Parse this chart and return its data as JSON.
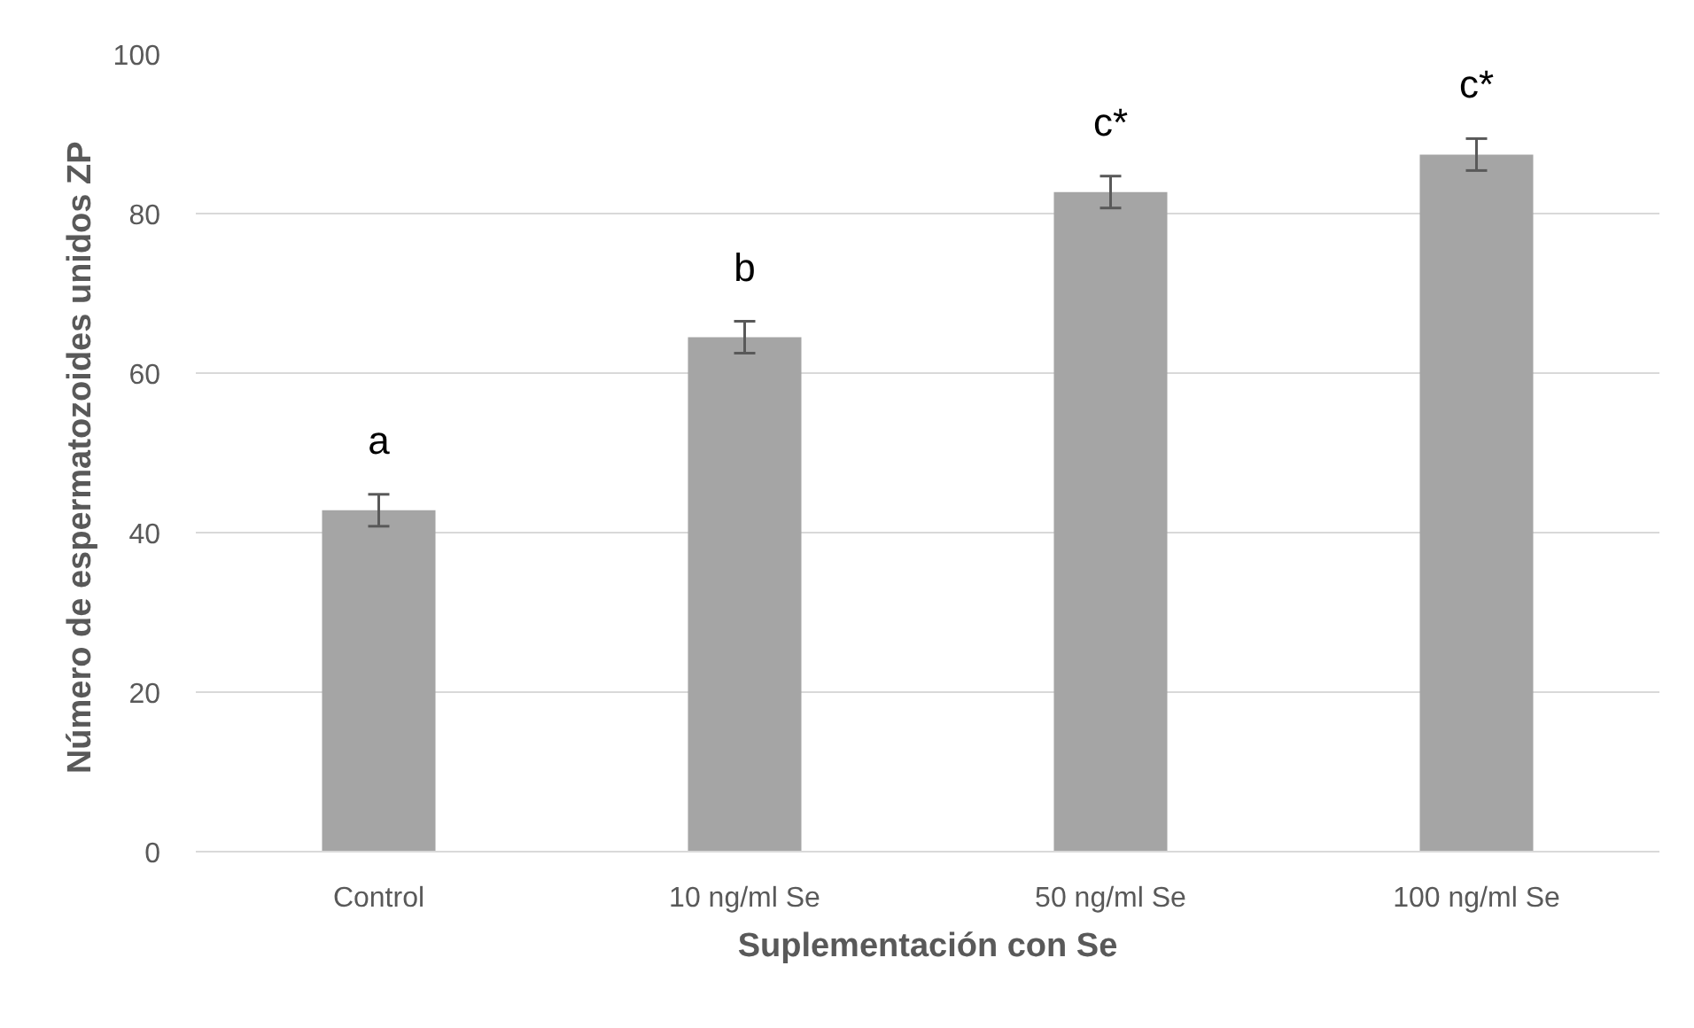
{
  "chart_data": {
    "type": "bar",
    "xlabel": "Suplementación con Se",
    "ylabel": "Número de espermatozoides unidos  ZP",
    "categories": [
      "Control",
      "10 ng/ml Se",
      "50 ng/ml Se",
      "100 ng/ml Se"
    ],
    "values": [
      42.8,
      64.5,
      82.7,
      87.4
    ],
    "errors": [
      2,
      2,
      2,
      2
    ],
    "color": "#a5a5a5",
    "ylim": [
      0,
      100
    ],
    "yticks": [
      0,
      20,
      40,
      60,
      80,
      100
    ],
    "grid": "y",
    "annotations": [
      "a",
      "b",
      "c*",
      "c*"
    ]
  }
}
